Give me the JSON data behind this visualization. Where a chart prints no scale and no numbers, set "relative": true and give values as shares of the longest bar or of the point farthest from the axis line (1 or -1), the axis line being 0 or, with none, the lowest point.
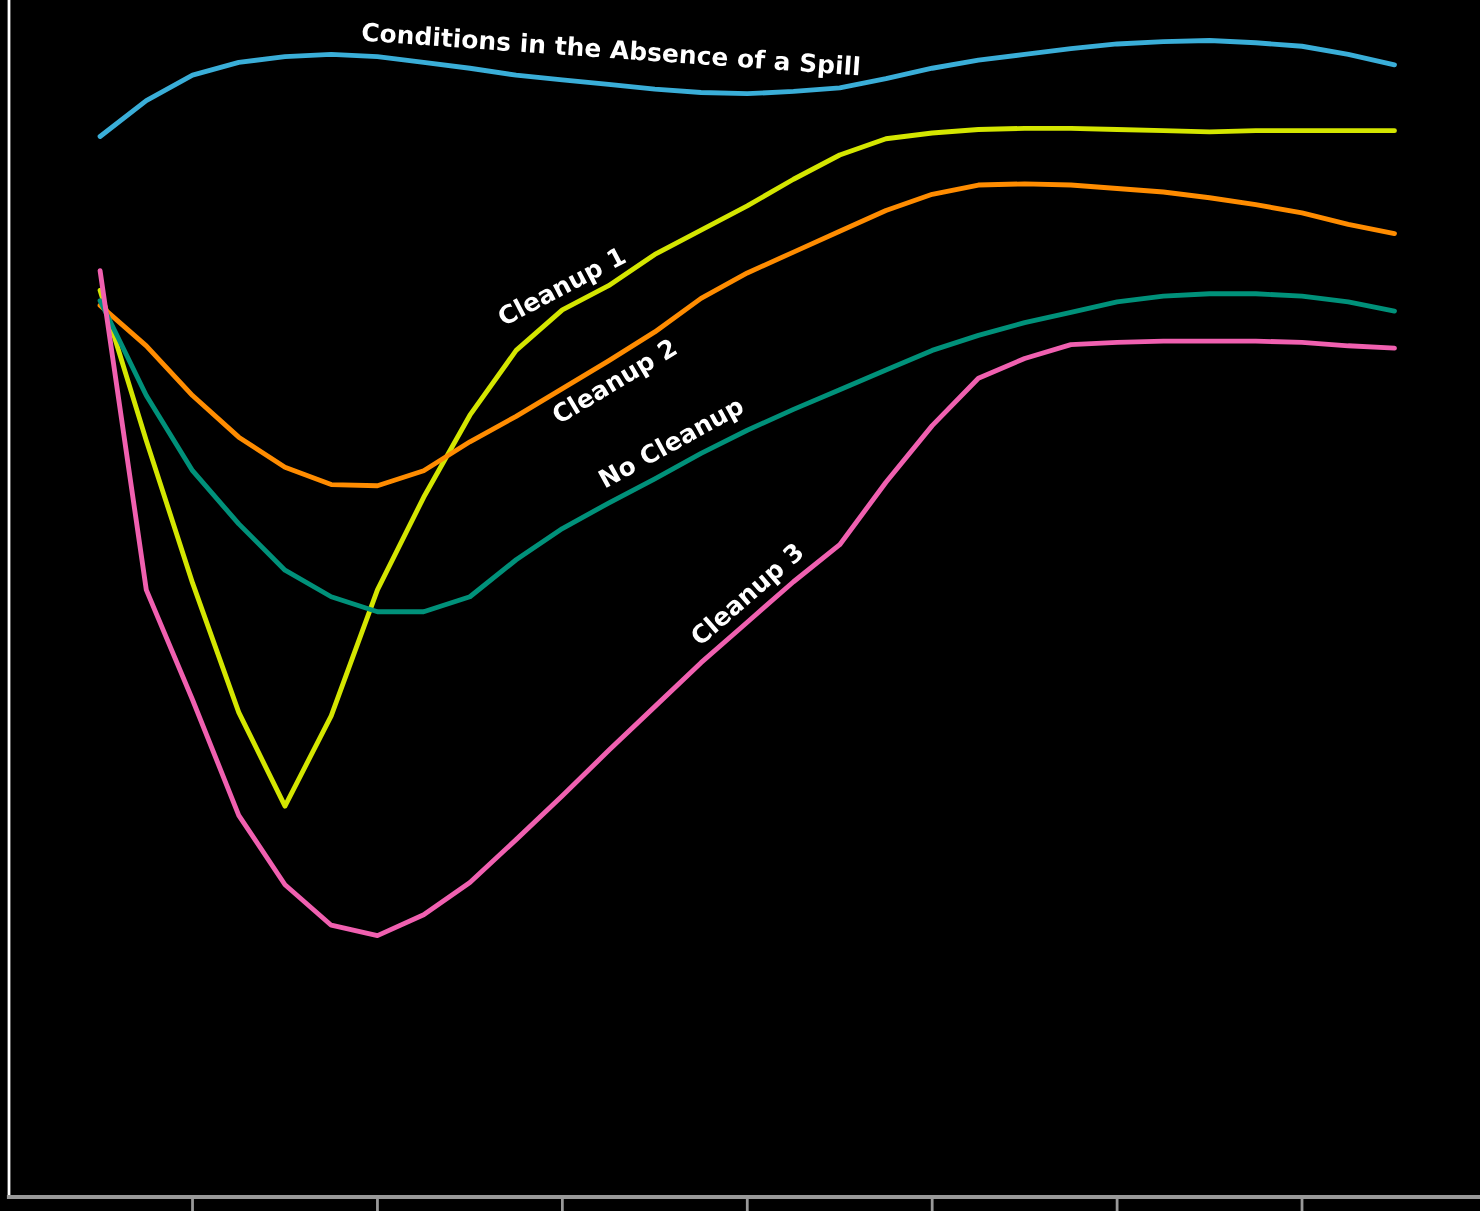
{
  "chart_data": {
    "type": "line",
    "relative": true,
    "grid": false,
    "legend": false,
    "marker": "none",
    "line_style": "solid",
    "categories": [
      null,
      null,
      null,
      null,
      null,
      null,
      null,
      null,
      null,
      null,
      null,
      null,
      null,
      null,
      null,
      null,
      null,
      null,
      null,
      null,
      null,
      null,
      null,
      null,
      null,
      null,
      null,
      null,
      null
    ],
    "series": [
      {
        "name": "Conditions in the Absence of a Spill",
        "color": "#3aaed8",
        "values": [
          0.917,
          0.948,
          0.97,
          0.981,
          0.986,
          0.988,
          0.986,
          0.981,
          0.976,
          0.97,
          0.966,
          0.962,
          0.958,
          0.955,
          0.954,
          0.956,
          0.959,
          0.967,
          0.976,
          0.983,
          0.988,
          0.993,
          0.997,
          0.999,
          1.0,
          0.998,
          0.995,
          0.988,
          0.979
        ]
      },
      {
        "name": "Cleanup 1",
        "color": "#d4e600",
        "values": [
          0.784,
          0.654,
          0.531,
          0.419,
          0.338,
          0.416,
          0.525,
          0.605,
          0.676,
          0.732,
          0.767,
          0.788,
          0.815,
          0.836,
          0.857,
          0.88,
          0.901,
          0.915,
          0.92,
          0.923,
          0.924,
          0.924,
          0.923,
          0.922,
          0.921,
          0.922,
          0.922,
          0.922,
          0.922
        ]
      },
      {
        "name": "Cleanup 2",
        "color": "#ff8c00",
        "values": [
          0.771,
          0.736,
          0.693,
          0.657,
          0.631,
          0.616,
          0.615,
          0.628,
          0.653,
          0.675,
          0.699,
          0.723,
          0.748,
          0.777,
          0.799,
          0.817,
          0.835,
          0.853,
          0.867,
          0.875,
          0.876,
          0.875,
          0.872,
          0.869,
          0.864,
          0.858,
          0.851,
          0.841,
          0.833
        ]
      },
      {
        "name": "No Cleanup",
        "color": "#00917a",
        "values": [
          0.775,
          0.693,
          0.628,
          0.582,
          0.542,
          0.519,
          0.506,
          0.506,
          0.519,
          0.551,
          0.578,
          0.6,
          0.621,
          0.643,
          0.663,
          0.681,
          0.698,
          0.715,
          0.732,
          0.745,
          0.756,
          0.765,
          0.774,
          0.779,
          0.781,
          0.781,
          0.779,
          0.774,
          0.766
        ]
      },
      {
        "name": "Cleanup 3",
        "color": "#f060b0",
        "values": [
          0.801,
          0.525,
          0.43,
          0.33,
          0.27,
          0.235,
          0.226,
          0.244,
          0.272,
          0.309,
          0.347,
          0.386,
          0.424,
          0.462,
          0.497,
          0.532,
          0.564,
          0.618,
          0.667,
          0.708,
          0.725,
          0.737,
          0.739,
          0.74,
          0.74,
          0.74,
          0.739,
          0.736,
          0.734
        ]
      }
    ]
  }
}
